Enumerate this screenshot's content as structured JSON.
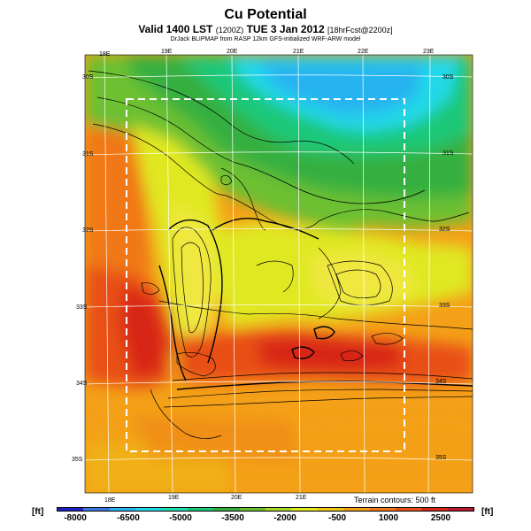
{
  "title": "Cu Potential",
  "subtitle_main": "Valid 1400 LST",
  "subtitle_code": "(1200Z)",
  "subtitle_date": "TUE 3 Jan 2012",
  "subtitle_fcst": "[18hrFcst@2200z]",
  "credit": "DrJack BLIPMAP from RASP 12km GFS-initialized WRF-ARW model",
  "lon_labels_top": [
    "18E",
    "19E",
    "20E",
    "21E",
    "22E",
    "23E"
  ],
  "lon_labels_bottom": [
    "18E",
    "19E",
    "20E",
    "21E"
  ],
  "lat_labels_left": [
    "30S",
    "31S",
    "32S",
    "33S",
    "34S",
    "35S"
  ],
  "lat_labels_right": [
    "30S",
    "31S",
    "32S",
    "33S",
    "34S",
    "35S"
  ],
  "terrain_note": "Terrain contours: 500 ft",
  "colorbar": {
    "unit_left": "[ft]",
    "unit_right": "[ft]",
    "ticks": [
      "-8000",
      "-6500",
      "-5000",
      "-3500",
      "-2000",
      "-500",
      "1000",
      "2500"
    ],
    "colors": [
      "#2020c8",
      "#3a7ae0",
      "#28b4f0",
      "#22d8e8",
      "#1ee0b0",
      "#1ec878",
      "#34b040",
      "#6cc030",
      "#a8d828",
      "#e0e820",
      "#f0c818",
      "#f4a018",
      "#f07818",
      "#e85018",
      "#d82818",
      "#b81830"
    ]
  }
}
